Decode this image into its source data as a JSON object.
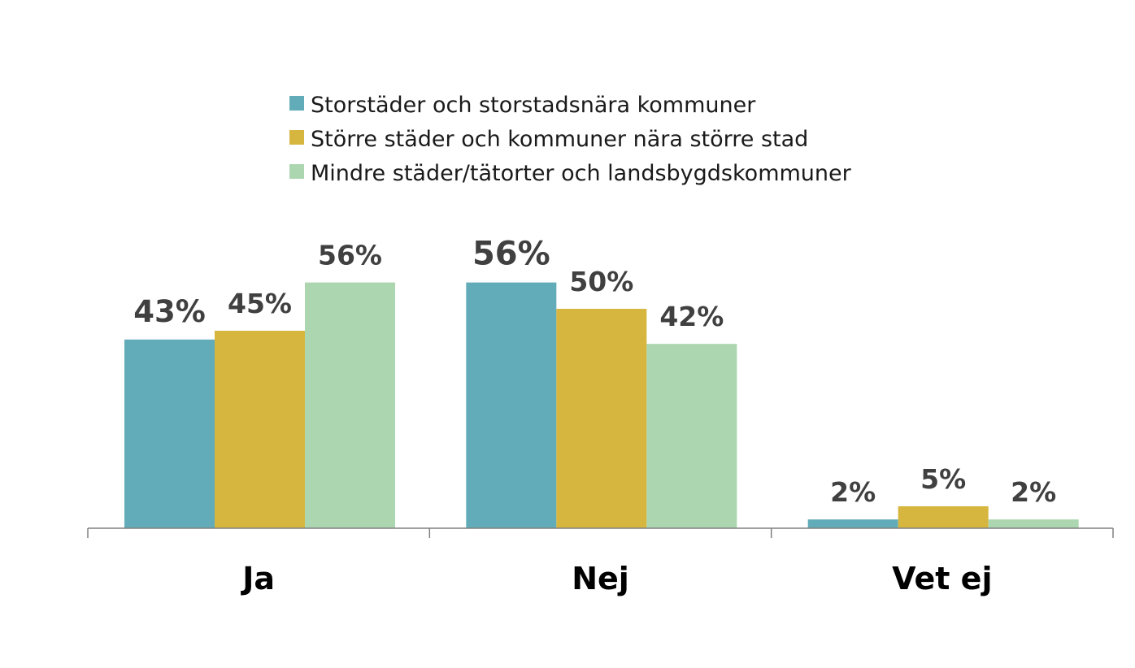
{
  "chart_data": {
    "type": "bar",
    "title": "",
    "xlabel": "",
    "ylabel": "",
    "grid": false,
    "legend_position": "top",
    "ylim": [
      0,
      60
    ],
    "categories": [
      "Ja",
      "Nej",
      "Vet ej"
    ],
    "series": [
      {
        "name": "Storstäder och storstadsnära kommuner",
        "color": "#62acb9",
        "values": [
          43,
          56,
          2
        ],
        "labels": [
          "43%",
          "56%",
          "2%"
        ]
      },
      {
        "name": "Större städer och kommuner nära större stad",
        "color": "#d6b63f",
        "values": [
          45,
          50,
          5
        ],
        "labels": [
          "45%",
          "50%",
          "5%"
        ]
      },
      {
        "name": "Mindre städer/tätorter och landsbygdskommuner",
        "color": "#abd6af",
        "values": [
          56,
          42,
          2
        ],
        "labels": [
          "56%",
          "42%",
          "2%"
        ]
      }
    ]
  }
}
